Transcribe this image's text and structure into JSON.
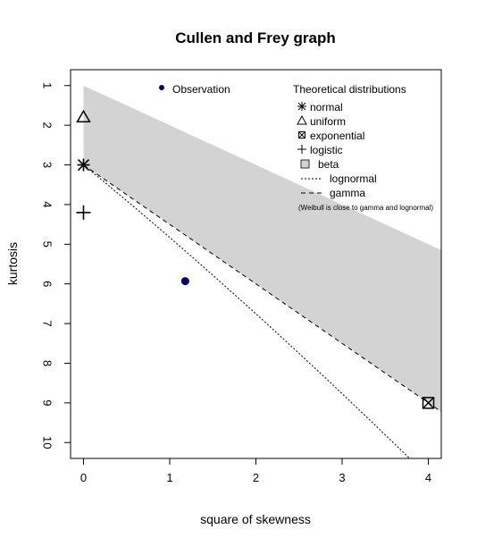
{
  "chart_data": {
    "type": "scatter",
    "title": "Cullen and Frey graph",
    "xlabel": "square of skewness",
    "ylabel": "kurtosis",
    "xlim": [
      -0.15,
      4.15
    ],
    "ylim": [
      10.4,
      0.6
    ],
    "x_ticks": [
      "0",
      "1",
      "2",
      "3",
      "4"
    ],
    "x_tick_values": [
      0,
      1,
      2,
      3,
      4
    ],
    "y_ticks": [
      "1",
      "2",
      "3",
      "4",
      "5",
      "6",
      "7",
      "8",
      "9",
      "10"
    ],
    "y_tick_values": [
      1,
      2,
      3,
      4,
      5,
      6,
      7,
      8,
      9,
      10
    ],
    "observation": {
      "name": "Observation",
      "x": 1.18,
      "y": 5.93,
      "color": "#000080"
    },
    "theoretical_points": {
      "normal": {
        "x": 0,
        "y": 3
      },
      "uniform": {
        "x": 0,
        "y": 1.8
      },
      "exponential": {
        "x": 4,
        "y": 9
      },
      "logistic": {
        "x": 0,
        "y": 4.2
      }
    },
    "beta_region_color": "#d3d3d3",
    "legend": {
      "observation_label": "Observation",
      "theoretical_title": "Theoretical distributions",
      "normal": "normal",
      "uniform": "uniform",
      "exponential": "exponential",
      "logistic": "logistic",
      "beta": "beta",
      "lognormal": "lognormal",
      "gamma": "gamma",
      "note": "(Weibull is close to gamma and lognormal)",
      "placement": "top"
    }
  }
}
